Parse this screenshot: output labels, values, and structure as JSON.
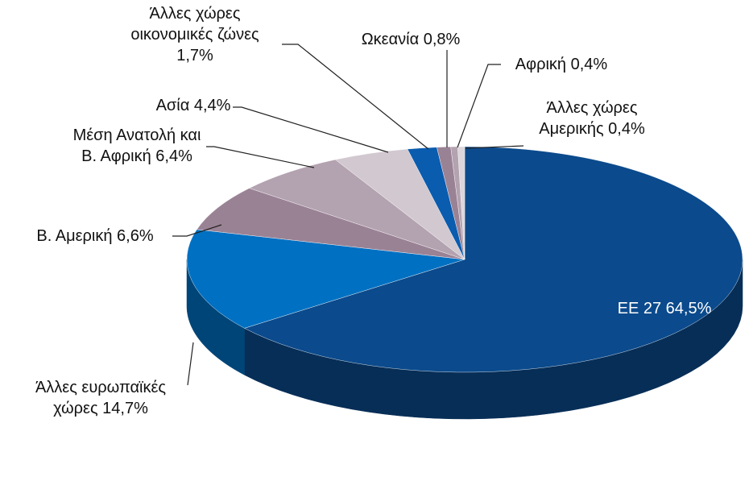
{
  "chart_data": {
    "type": "pie3d",
    "categories": [
      "ΕΕ 27",
      "Άλλες ευρωπαϊκές χώρες",
      "Β. Αμερική",
      "Μέση Ανατολή και Β. Αφρική",
      "Ασία",
      "Άλλες χώρες οικονομικές ζώνες",
      "Ωκεανία",
      "Αφρική",
      "Άλλες χώρες Αμερικής"
    ],
    "values": [
      64.5,
      14.7,
      6.6,
      6.4,
      4.4,
      1.7,
      0.8,
      0.4,
      0.4
    ],
    "value_labels": [
      "64,5%",
      "14,7%",
      "6,6%",
      "6,4%",
      "4,4%",
      "1,7%",
      "0,8%",
      "0,4%",
      "0,4%"
    ],
    "colors": [
      "#0b4a8c",
      "#0070c2",
      "#9a8295",
      "#b3a2b0",
      "#d2c8d0",
      "#0a5cae",
      "#9a8295",
      "#b3a2b0",
      "#dcd5da"
    ]
  }
}
